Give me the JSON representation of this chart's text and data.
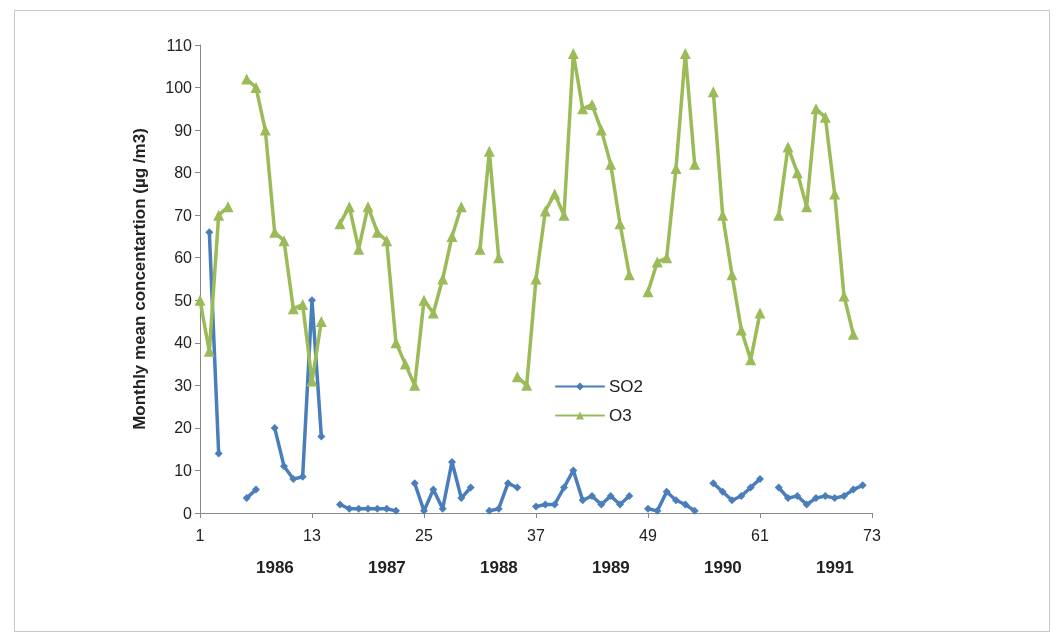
{
  "chart_data": {
    "type": "line",
    "ylabel": "Monthly mean concentartion (µg /m3)",
    "x": [
      1,
      2,
      3,
      4,
      5,
      6,
      7,
      8,
      9,
      10,
      11,
      12,
      13,
      14,
      15,
      16,
      17,
      18,
      19,
      20,
      21,
      22,
      23,
      24,
      25,
      26,
      27,
      28,
      29,
      30,
      31,
      32,
      33,
      34,
      35,
      36,
      37,
      38,
      39,
      40,
      41,
      42,
      43,
      44,
      45,
      46,
      47,
      48,
      49,
      50,
      51,
      52,
      53,
      54,
      55,
      56,
      57,
      58,
      59,
      60,
      61,
      62,
      63,
      64,
      65,
      66,
      67,
      68,
      69,
      70,
      71,
      72
    ],
    "series": [
      {
        "name": "SO2",
        "color": "#4a7ebb",
        "marker": "diamond",
        "values": [
          null,
          66,
          14,
          null,
          null,
          3.5,
          5.5,
          null,
          20,
          11,
          8,
          8.5,
          50,
          18,
          null,
          2,
          1,
          1,
          1,
          1,
          1,
          0.5,
          null,
          7,
          0.5,
          5.5,
          1,
          12,
          3.5,
          6,
          null,
          0.5,
          1,
          7,
          6,
          null,
          1.5,
          2,
          2,
          6,
          10,
          3,
          4,
          2,
          4,
          2,
          4,
          null,
          1,
          0.5,
          5,
          3,
          2,
          0.5,
          null,
          7,
          5,
          3,
          4,
          6,
          8,
          null,
          6,
          3.5,
          4,
          2,
          3.5,
          4,
          3.5,
          4,
          5.5,
          6.5
        ]
      },
      {
        "name": "O3",
        "color": "#9bbb59",
        "marker": "triangle",
        "values": [
          50,
          38,
          70,
          72,
          null,
          102,
          100,
          90,
          66,
          64,
          48,
          49,
          31,
          45,
          null,
          68,
          72,
          62,
          72,
          66,
          64,
          40,
          35,
          30,
          50,
          47,
          55,
          65,
          72,
          null,
          62,
          85,
          60,
          null,
          32,
          30,
          55,
          71,
          75,
          70,
          108,
          95,
          96,
          90,
          82,
          68,
          56,
          null,
          52,
          59,
          60,
          81,
          108,
          82,
          null,
          99,
          70,
          56,
          43,
          36,
          47,
          null,
          70,
          86,
          80,
          72,
          95,
          93,
          75,
          51,
          42,
          null
        ]
      }
    ],
    "xlim": [
      1,
      73
    ],
    "xticks": [
      1,
      13,
      25,
      37,
      49,
      61,
      73
    ],
    "ylim": [
      0,
      110
    ],
    "yticks": [
      0,
      10,
      20,
      30,
      40,
      50,
      60,
      70,
      80,
      90,
      100,
      110
    ],
    "grid": false,
    "legend": "center",
    "line_style": "solid",
    "annotations": [
      "1986",
      "1987",
      "1988",
      "1989",
      "1990",
      "1991"
    ]
  }
}
